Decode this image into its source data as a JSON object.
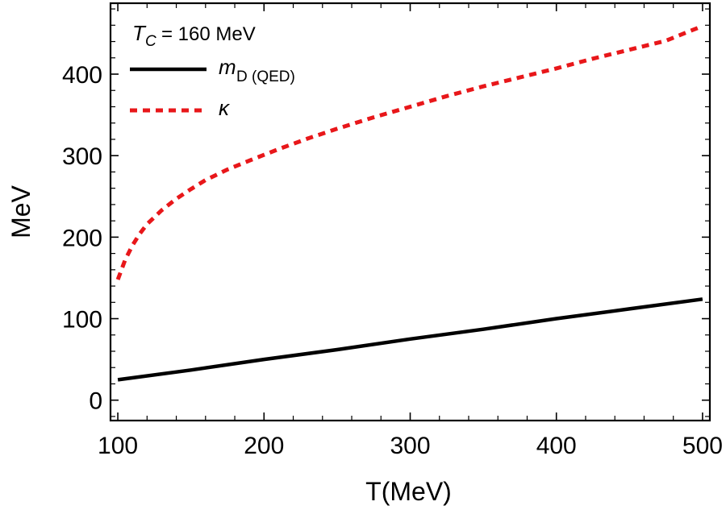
{
  "chart_data": {
    "type": "line",
    "title": "",
    "xlabel": "T(MeV)",
    "ylabel": "MeV",
    "xlim": [
      95,
      505
    ],
    "ylim": [
      -25,
      487
    ],
    "x_ticks": [
      100,
      200,
      300,
      400,
      500
    ],
    "y_ticks": [
      0,
      100,
      200,
      300,
      400
    ],
    "x_tick_labels": [
      "100",
      "200",
      "300",
      "400",
      "500"
    ],
    "y_tick_labels": [
      "0",
      "100",
      "200",
      "300",
      "400"
    ],
    "grid": false,
    "legend": {
      "position": "top-left",
      "header": {
        "symbol": "T",
        "subscript": "C",
        "text": "= 160 MeV"
      },
      "entries": [
        {
          "symbol": "m",
          "subscript": "D (QED)",
          "series": 0
        },
        {
          "symbol": "κ",
          "subscript": "",
          "series": 1
        }
      ]
    },
    "series": [
      {
        "name": "m_D(QED)",
        "color": "#000000",
        "style": "solid",
        "x": [
          100,
          150,
          200,
          250,
          300,
          350,
          400,
          450,
          500
        ],
        "values": [
          25,
          37,
          50,
          62,
          75,
          87,
          100,
          112,
          124
        ]
      },
      {
        "name": "κ",
        "color": "#e8171a",
        "style": "dashed",
        "x": [
          100,
          105,
          110,
          115,
          120,
          130,
          140,
          150,
          160,
          175,
          190,
          210,
          230,
          250,
          275,
          300,
          325,
          350,
          375,
          400,
          425,
          450,
          475,
          500
        ],
        "values": [
          148,
          172,
          190,
          204,
          216,
          233,
          247,
          259,
          270,
          283,
          294,
          308,
          321,
          333,
          347,
          360,
          373,
          385,
          396,
          407,
          419,
          430,
          441,
          459
        ]
      }
    ]
  }
}
